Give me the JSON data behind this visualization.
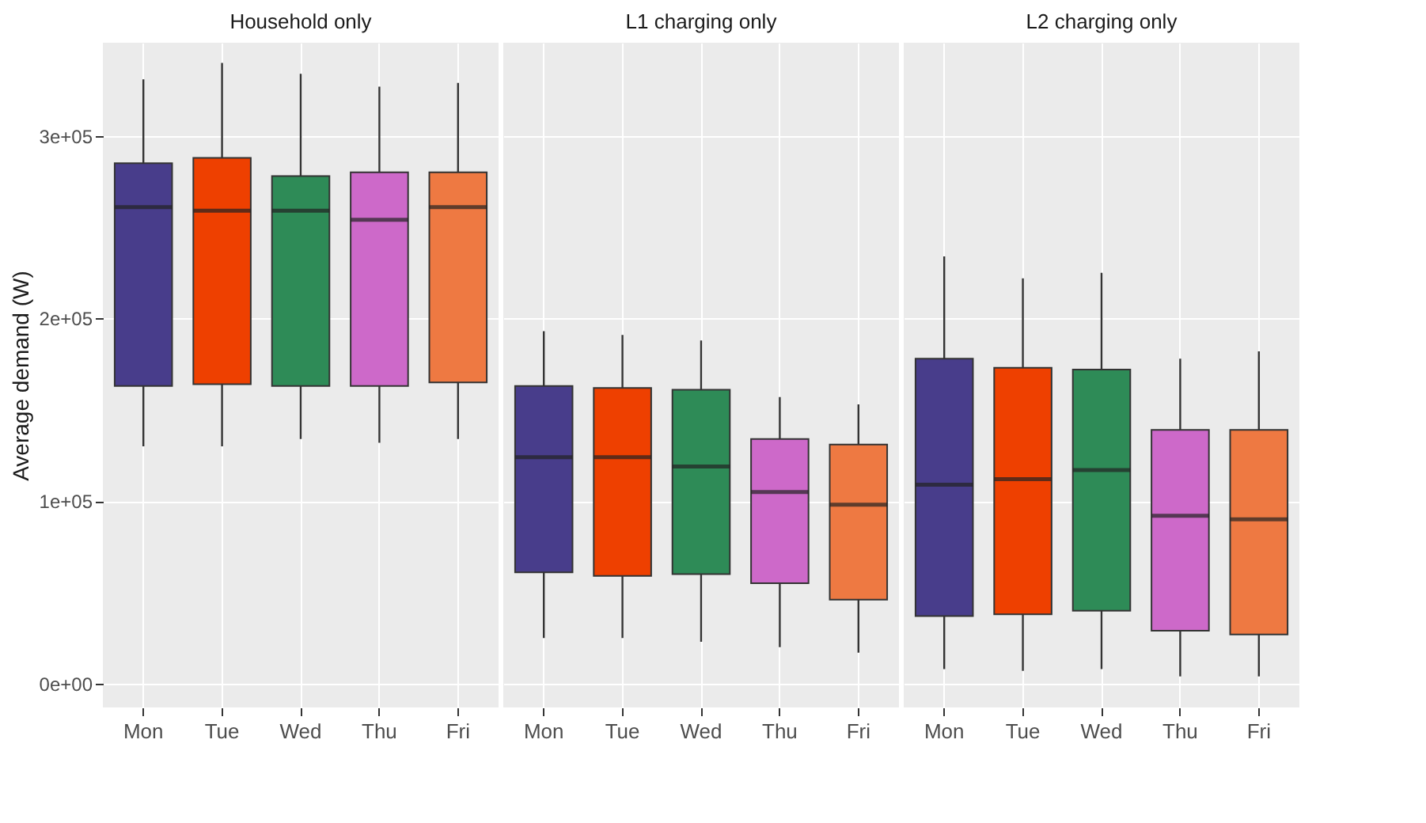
{
  "chart_data": [
    {
      "type": "box",
      "title": "Household only",
      "ylabel": "Average demand (W)",
      "categories": [
        "Mon",
        "Tue",
        "Wed",
        "Thu",
        "Fri"
      ],
      "colors": [
        "#483d8b",
        "#ee4000",
        "#2e8b57",
        "#cd69c9",
        "#ee7942"
      ],
      "ylim": [
        -13000,
        351000
      ],
      "yticks": [
        {
          "value": 0,
          "label": "0e+00"
        },
        {
          "value": 100000,
          "label": "1e+05"
        },
        {
          "value": 200000,
          "label": "2e+05"
        },
        {
          "value": 300000,
          "label": "3e+05"
        }
      ],
      "grid": true,
      "boxes": [
        {
          "low": 130000,
          "q1": 163000,
          "median": 261000,
          "q3": 285000,
          "high": 331000
        },
        {
          "low": 130000,
          "q1": 164000,
          "median": 259000,
          "q3": 288000,
          "high": 340000
        },
        {
          "low": 134000,
          "q1": 163000,
          "median": 259000,
          "q3": 278000,
          "high": 334000
        },
        {
          "low": 132000,
          "q1": 163000,
          "median": 254000,
          "q3": 280000,
          "high": 327000
        },
        {
          "low": 134000,
          "q1": 165000,
          "median": 261000,
          "q3": 280000,
          "high": 329000
        }
      ]
    },
    {
      "type": "box",
      "title": "L1 charging only",
      "categories": [
        "Mon",
        "Tue",
        "Wed",
        "Thu",
        "Fri"
      ],
      "colors": [
        "#483d8b",
        "#ee4000",
        "#2e8b57",
        "#cd69c9",
        "#ee7942"
      ],
      "ylim": [
        -13000,
        351000
      ],
      "yticks": [
        0,
        100000,
        200000,
        300000
      ],
      "grid": true,
      "tick_labels": "x",
      "boxes": [
        {
          "low": 25000,
          "q1": 61000,
          "median": 124000,
          "q3": 163000,
          "high": 193000
        },
        {
          "low": 25000,
          "q1": 59000,
          "median": 124000,
          "q3": 162000,
          "high": 191000
        },
        {
          "low": 23000,
          "q1": 60000,
          "median": 119000,
          "q3": 161000,
          "high": 188000
        },
        {
          "low": 20000,
          "q1": 55000,
          "median": 105000,
          "q3": 134000,
          "high": 157000
        },
        {
          "low": 17000,
          "q1": 46000,
          "median": 98000,
          "q3": 131000,
          "high": 153000
        }
      ]
    },
    {
      "type": "box",
      "title": "L2 charging only",
      "categories": [
        "Mon",
        "Tue",
        "Wed",
        "Thu",
        "Fri"
      ],
      "colors": [
        "#483d8b",
        "#ee4000",
        "#2e8b57",
        "#cd69c9",
        "#ee7942"
      ],
      "ylim": [
        -13000,
        351000
      ],
      "yticks": [
        0,
        100000,
        200000,
        300000
      ],
      "grid": true,
      "tick_labels": "x",
      "boxes": [
        {
          "low": 8000,
          "q1": 37000,
          "median": 109000,
          "q3": 178000,
          "high": 234000
        },
        {
          "low": 7000,
          "q1": 38000,
          "median": 112000,
          "q3": 173000,
          "high": 222000
        },
        {
          "low": 8000,
          "q1": 40000,
          "median": 117000,
          "q3": 172000,
          "high": 225000
        },
        {
          "low": 4000,
          "q1": 29000,
          "median": 92000,
          "q3": 139000,
          "high": 178000
        },
        {
          "low": 4000,
          "q1": 27000,
          "median": 90000,
          "q3": 139000,
          "high": 182000
        }
      ]
    }
  ]
}
